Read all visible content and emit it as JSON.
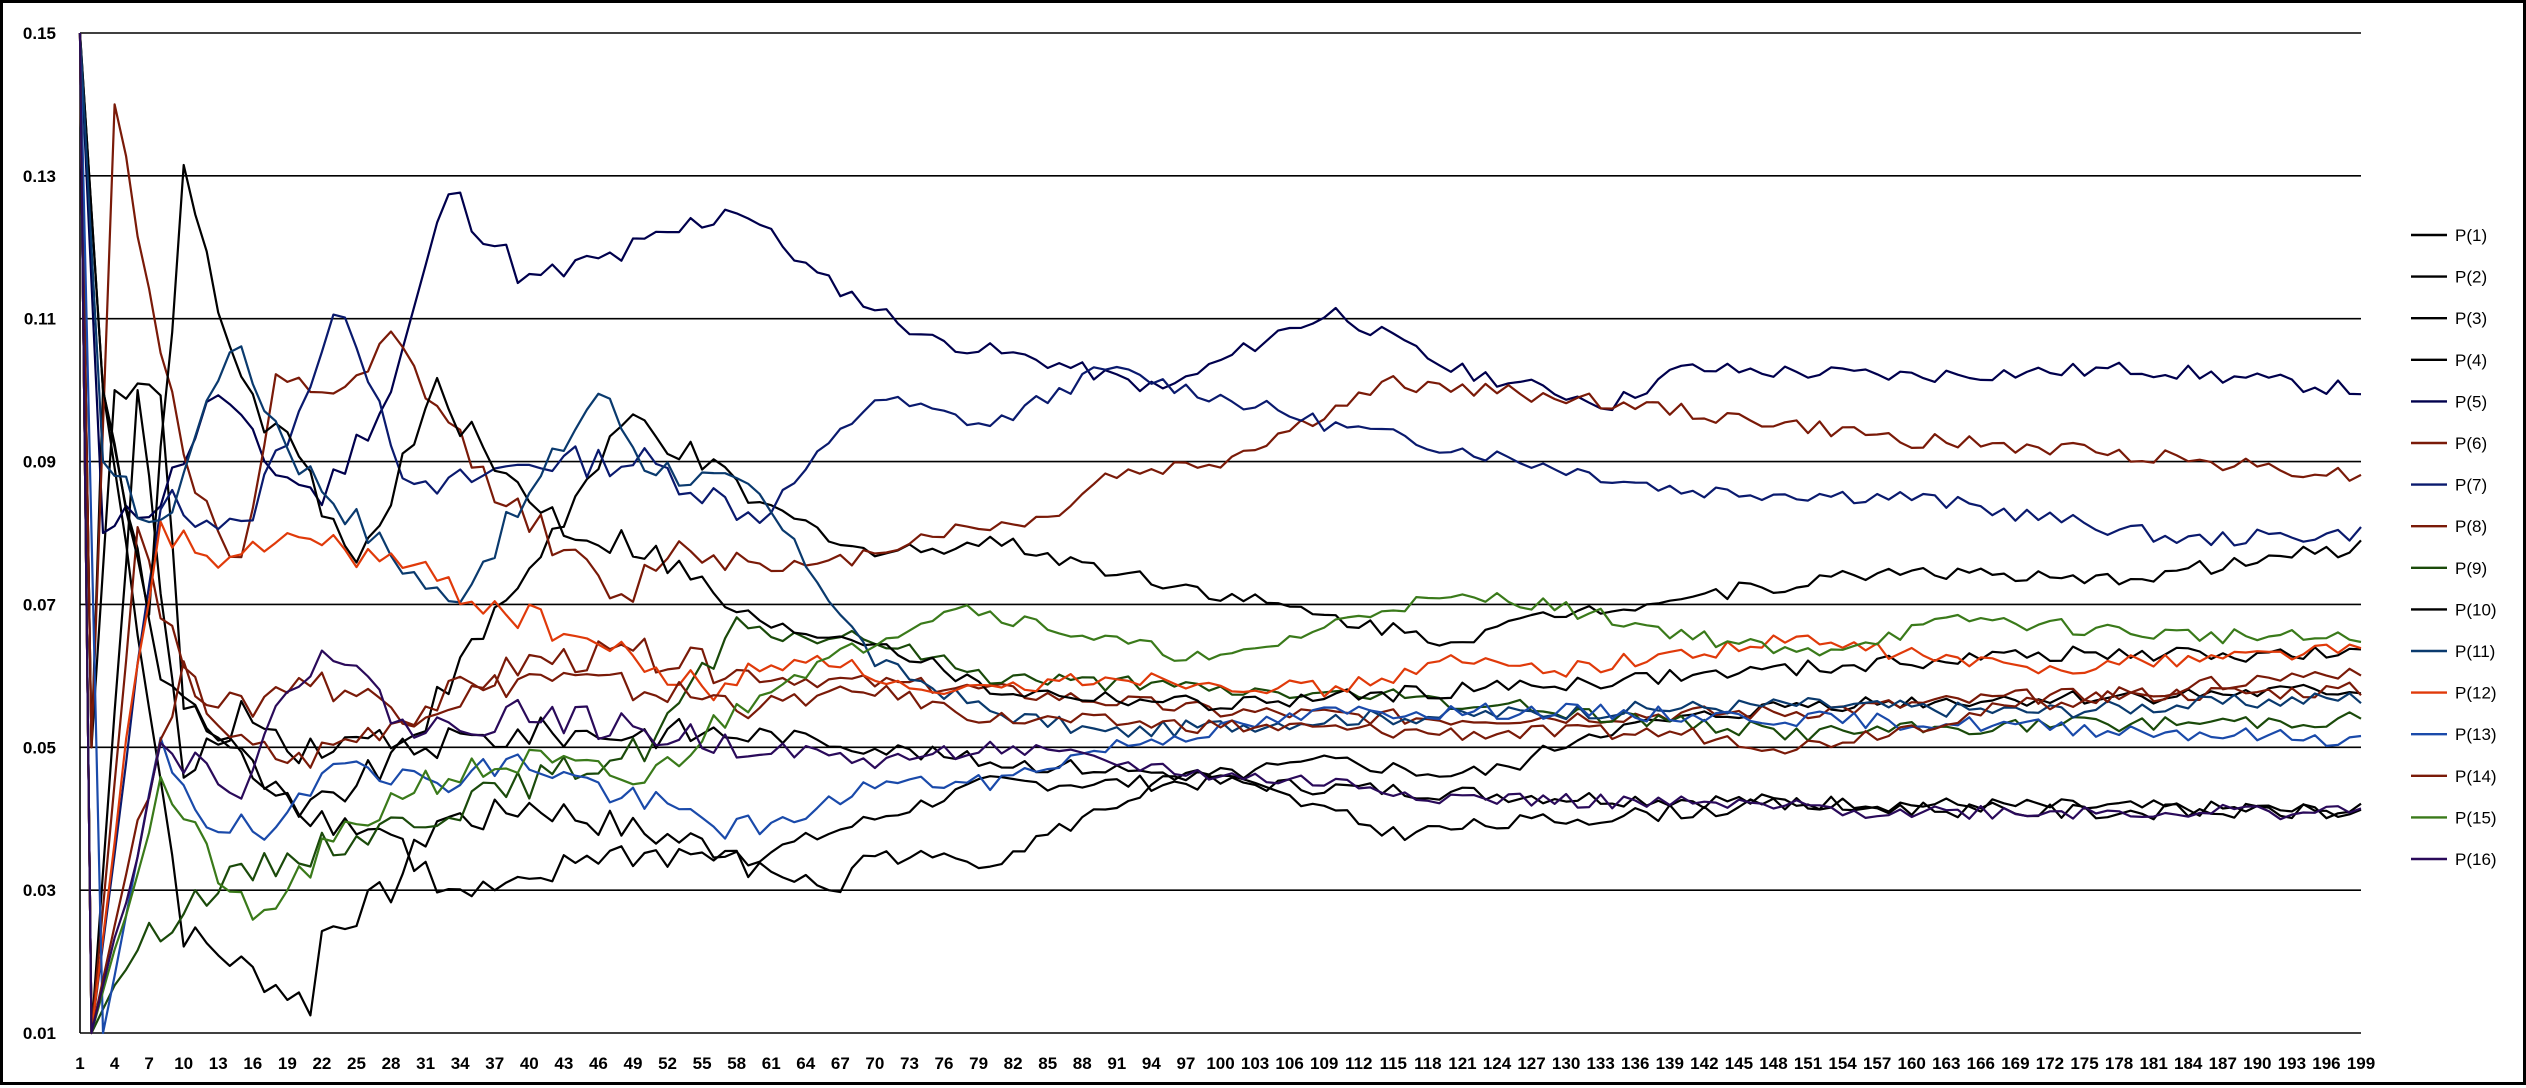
{
  "chart_data": {
    "type": "line",
    "title": "",
    "xlabel": "",
    "ylabel": "",
    "xlim": [
      1,
      199
    ],
    "ylim": [
      0.01,
      0.15
    ],
    "y_ticks": [
      "0.15",
      "0.13",
      "0.11",
      "0.09",
      "0.07",
      "0.05",
      "0.03",
      "0.01"
    ],
    "y_tick_values": [
      0.15,
      0.13,
      0.11,
      0.09,
      0.07,
      0.05,
      0.03,
      0.01
    ],
    "x_tick_step": 3,
    "grid": "horizontal",
    "legend_position": "right",
    "series": [
      {
        "name": "P(1)",
        "color": "#000000",
        "anchors": [
          [
            1,
            0.15
          ],
          [
            3,
            0.1
          ],
          [
            10,
            0.024
          ],
          [
            21,
            0.014
          ],
          [
            22,
            0.024
          ],
          [
            28,
            0.03
          ],
          [
            32,
            0.04
          ],
          [
            36,
            0.04
          ],
          [
            40,
            0.042
          ],
          [
            50,
            0.038
          ],
          [
            60,
            0.035
          ],
          [
            80,
            0.045
          ],
          [
            100,
            0.045
          ],
          [
            130,
            0.043
          ],
          [
            160,
            0.042
          ],
          [
            199,
            0.041
          ]
        ]
      },
      {
        "name": "P(2)",
        "color": "#000000",
        "anchors": [
          [
            1,
            0.15
          ],
          [
            2,
            0.05
          ],
          [
            3,
            0.1
          ],
          [
            8,
            0.06
          ],
          [
            15,
            0.048
          ],
          [
            22,
            0.04
          ],
          [
            28,
            0.038
          ],
          [
            33,
            0.029
          ],
          [
            40,
            0.03
          ],
          [
            45,
            0.035
          ],
          [
            55,
            0.035
          ],
          [
            67,
            0.03
          ],
          [
            69,
            0.035
          ],
          [
            80,
            0.034
          ],
          [
            95,
            0.045
          ],
          [
            110,
            0.048
          ],
          [
            120,
            0.046
          ],
          [
            125,
            0.047
          ],
          [
            132,
            0.052
          ],
          [
            150,
            0.056
          ],
          [
            175,
            0.057
          ],
          [
            199,
            0.058
          ]
        ]
      },
      {
        "name": "P(3)",
        "color": "#000000",
        "anchors": [
          [
            1,
            0.15
          ],
          [
            2,
            0.05
          ],
          [
            4,
            0.1
          ],
          [
            8,
            0.1
          ],
          [
            10,
            0.057
          ],
          [
            20,
            0.04
          ],
          [
            30,
            0.05
          ],
          [
            40,
            0.052
          ],
          [
            60,
            0.052
          ],
          [
            80,
            0.048
          ],
          [
            100,
            0.046
          ],
          [
            115,
            0.038
          ],
          [
            130,
            0.04
          ],
          [
            150,
            0.042
          ],
          [
            170,
            0.041
          ],
          [
            199,
            0.041
          ]
        ]
      },
      {
        "name": "P(4)",
        "color": "#000000",
        "anchors": [
          [
            1,
            0.15
          ],
          [
            2,
            0.01
          ],
          [
            6,
            0.1
          ],
          [
            10,
            0.045
          ],
          [
            15,
            0.055
          ],
          [
            20,
            0.05
          ],
          [
            30,
            0.052
          ],
          [
            49,
            0.096
          ],
          [
            60,
            0.084
          ],
          [
            70,
            0.077
          ],
          [
            80,
            0.079
          ],
          [
            90,
            0.075
          ],
          [
            110,
            0.068
          ],
          [
            120,
            0.065
          ],
          [
            130,
            0.069
          ],
          [
            140,
            0.071
          ],
          [
            160,
            0.075
          ],
          [
            175,
            0.073
          ],
          [
            199,
            0.078
          ]
        ]
      },
      {
        "name": "P(5)",
        "color": "#00004d",
        "anchors": [
          [
            1,
            0.15
          ],
          [
            3,
            0.08
          ],
          [
            8,
            0.085
          ],
          [
            13,
            0.1
          ],
          [
            17,
            0.09
          ],
          [
            22,
            0.085
          ],
          [
            28,
            0.1
          ],
          [
            33,
            0.128
          ],
          [
            40,
            0.115
          ],
          [
            50,
            0.12
          ],
          [
            58,
            0.126
          ],
          [
            65,
            0.116
          ],
          [
            75,
            0.107
          ],
          [
            85,
            0.104
          ],
          [
            95,
            0.1
          ],
          [
            105,
            0.108
          ],
          [
            110,
            0.111
          ],
          [
            120,
            0.103
          ],
          [
            134,
            0.098
          ],
          [
            140,
            0.103
          ],
          [
            160,
            0.102
          ],
          [
            180,
            0.103
          ],
          [
            199,
            0.1
          ]
        ]
      },
      {
        "name": "P(6)",
        "color": "#7a1a08",
        "anchors": [
          [
            1,
            0.15
          ],
          [
            2,
            0.05
          ],
          [
            4,
            0.14
          ],
          [
            10,
            0.09
          ],
          [
            15,
            0.075
          ],
          [
            18,
            0.1
          ],
          [
            25,
            0.1
          ],
          [
            28,
            0.107
          ],
          [
            36,
            0.088
          ],
          [
            48,
            0.07
          ],
          [
            52,
            0.078
          ],
          [
            60,
            0.076
          ],
          [
            65,
            0.075
          ],
          [
            75,
            0.08
          ],
          [
            85,
            0.082
          ],
          [
            90,
            0.088
          ],
          [
            100,
            0.09
          ],
          [
            115,
            0.101
          ],
          [
            130,
            0.099
          ],
          [
            160,
            0.093
          ],
          [
            180,
            0.091
          ],
          [
            199,
            0.088
          ]
        ]
      },
      {
        "name": "P(7)",
        "color": "#0a1a6e",
        "anchors": [
          [
            1,
            0.15
          ],
          [
            2,
            0.01
          ],
          [
            8,
            0.085
          ],
          [
            15,
            0.08
          ],
          [
            24,
            0.112
          ],
          [
            30,
            0.085
          ],
          [
            40,
            0.09
          ],
          [
            50,
            0.09
          ],
          [
            60,
            0.082
          ],
          [
            70,
            0.099
          ],
          [
            80,
            0.095
          ],
          [
            90,
            0.103
          ],
          [
            110,
            0.095
          ],
          [
            120,
            0.092
          ],
          [
            130,
            0.089
          ],
          [
            140,
            0.086
          ],
          [
            160,
            0.085
          ],
          [
            184,
            0.079
          ],
          [
            199,
            0.08
          ]
        ]
      },
      {
        "name": "P(8)",
        "color": "#7a1a08",
        "anchors": [
          [
            1,
            0.15
          ],
          [
            2,
            0.01
          ],
          [
            6,
            0.08
          ],
          [
            10,
            0.06
          ],
          [
            15,
            0.05
          ],
          [
            20,
            0.048
          ],
          [
            30,
            0.055
          ],
          [
            40,
            0.062
          ],
          [
            50,
            0.063
          ],
          [
            60,
            0.06
          ],
          [
            80,
            0.058
          ],
          [
            100,
            0.055
          ],
          [
            120,
            0.054
          ],
          [
            150,
            0.055
          ],
          [
            170,
            0.057
          ],
          [
            199,
            0.058
          ]
        ]
      },
      {
        "name": "P(9)",
        "color": "#1a4a0a",
        "anchors": [
          [
            1,
            0.15
          ],
          [
            2,
            0.01
          ],
          [
            5,
            0.02
          ],
          [
            8,
            0.025
          ],
          [
            12,
            0.03
          ],
          [
            20,
            0.035
          ],
          [
            30,
            0.04
          ],
          [
            40,
            0.045
          ],
          [
            50,
            0.05
          ],
          [
            58,
            0.066
          ],
          [
            70,
            0.065
          ],
          [
            80,
            0.06
          ],
          [
            100,
            0.058
          ],
          [
            115,
            0.057
          ],
          [
            130,
            0.055
          ],
          [
            150,
            0.052
          ],
          [
            170,
            0.053
          ],
          [
            199,
            0.054
          ]
        ]
      },
      {
        "name": "P(10)",
        "color": "#000000",
        "anchors": [
          [
            1,
            0.15
          ],
          [
            3,
            0.1
          ],
          [
            7,
            0.07
          ],
          [
            10,
            0.13
          ],
          [
            15,
            0.1
          ],
          [
            20,
            0.09
          ],
          [
            25,
            0.075
          ],
          [
            32,
            0.1
          ],
          [
            37,
            0.089
          ],
          [
            44,
            0.08
          ],
          [
            50,
            0.078
          ],
          [
            60,
            0.067
          ],
          [
            70,
            0.065
          ],
          [
            80,
            0.058
          ],
          [
            100,
            0.056
          ],
          [
            120,
            0.058
          ],
          [
            140,
            0.06
          ],
          [
            170,
            0.063
          ],
          [
            199,
            0.063
          ]
        ]
      },
      {
        "name": "P(11)",
        "color": "#0a3a6e",
        "anchors": [
          [
            1,
            0.15
          ],
          [
            3,
            0.09
          ],
          [
            8,
            0.08
          ],
          [
            14,
            0.107
          ],
          [
            20,
            0.09
          ],
          [
            26,
            0.08
          ],
          [
            33,
            0.07
          ],
          [
            40,
            0.085
          ],
          [
            46,
            0.1
          ],
          [
            50,
            0.09
          ],
          [
            60,
            0.085
          ],
          [
            70,
            0.062
          ],
          [
            80,
            0.055
          ],
          [
            90,
            0.052
          ],
          [
            110,
            0.054
          ],
          [
            130,
            0.055
          ],
          [
            150,
            0.056
          ],
          [
            170,
            0.055
          ],
          [
            199,
            0.057
          ]
        ]
      },
      {
        "name": "P(12)",
        "color": "#e03a0a",
        "anchors": [
          [
            1,
            0.15
          ],
          [
            2,
            0.01
          ],
          [
            5,
            0.05
          ],
          [
            8,
            0.08
          ],
          [
            15,
            0.075
          ],
          [
            18,
            0.08
          ],
          [
            28,
            0.076
          ],
          [
            35,
            0.071
          ],
          [
            45,
            0.065
          ],
          [
            55,
            0.058
          ],
          [
            65,
            0.063
          ],
          [
            75,
            0.057
          ],
          [
            90,
            0.06
          ],
          [
            110,
            0.058
          ],
          [
            120,
            0.062
          ],
          [
            130,
            0.061
          ],
          [
            150,
            0.065
          ],
          [
            170,
            0.061
          ],
          [
            199,
            0.064
          ]
        ]
      },
      {
        "name": "P(13)",
        "color": "#1a4aaa",
        "anchors": [
          [
            1,
            0.15
          ],
          [
            3,
            0.01
          ],
          [
            8,
            0.05
          ],
          [
            12,
            0.04
          ],
          [
            18,
            0.037
          ],
          [
            24,
            0.05
          ],
          [
            30,
            0.045
          ],
          [
            40,
            0.048
          ],
          [
            50,
            0.042
          ],
          [
            60,
            0.038
          ],
          [
            70,
            0.045
          ],
          [
            80,
            0.045
          ],
          [
            90,
            0.05
          ],
          [
            110,
            0.055
          ],
          [
            130,
            0.055
          ],
          [
            150,
            0.054
          ],
          [
            170,
            0.053
          ],
          [
            199,
            0.051
          ]
        ]
      },
      {
        "name": "P(14)",
        "color": "#7a1a08",
        "anchors": [
          [
            1,
            0.15
          ],
          [
            2,
            0.01
          ],
          [
            6,
            0.04
          ],
          [
            10,
            0.06
          ],
          [
            15,
            0.055
          ],
          [
            20,
            0.06
          ],
          [
            30,
            0.055
          ],
          [
            40,
            0.06
          ],
          [
            50,
            0.058
          ],
          [
            60,
            0.056
          ],
          [
            70,
            0.058
          ],
          [
            80,
            0.054
          ],
          [
            100,
            0.053
          ],
          [
            120,
            0.052
          ],
          [
            140,
            0.052
          ],
          [
            150,
            0.05
          ],
          [
            170,
            0.056
          ],
          [
            199,
            0.061
          ]
        ]
      },
      {
        "name": "P(15)",
        "color": "#3a7a1a",
        "anchors": [
          [
            1,
            0.15
          ],
          [
            2,
            0.01
          ],
          [
            8,
            0.045
          ],
          [
            16,
            0.025
          ],
          [
            22,
            0.035
          ],
          [
            30,
            0.045
          ],
          [
            40,
            0.048
          ],
          [
            50,
            0.045
          ],
          [
            60,
            0.058
          ],
          [
            70,
            0.065
          ],
          [
            77,
            0.07
          ],
          [
            90,
            0.065
          ],
          [
            100,
            0.062
          ],
          [
            115,
            0.07
          ],
          [
            125,
            0.071
          ],
          [
            140,
            0.066
          ],
          [
            150,
            0.063
          ],
          [
            165,
            0.068
          ],
          [
            180,
            0.066
          ],
          [
            199,
            0.065
          ]
        ]
      },
      {
        "name": "P(16)",
        "color": "#2a0a5a",
        "anchors": [
          [
            1,
            0.15
          ],
          [
            2,
            0.01
          ],
          [
            8,
            0.05
          ],
          [
            15,
            0.045
          ],
          [
            22,
            0.065
          ],
          [
            30,
            0.052
          ],
          [
            40,
            0.055
          ],
          [
            50,
            0.052
          ],
          [
            60,
            0.05
          ],
          [
            70,
            0.048
          ],
          [
            80,
            0.05
          ],
          [
            100,
            0.046
          ],
          [
            110,
            0.045
          ],
          [
            120,
            0.043
          ],
          [
            140,
            0.042
          ],
          [
            160,
            0.041
          ],
          [
            180,
            0.041
          ],
          [
            199,
            0.041
          ]
        ]
      }
    ]
  }
}
